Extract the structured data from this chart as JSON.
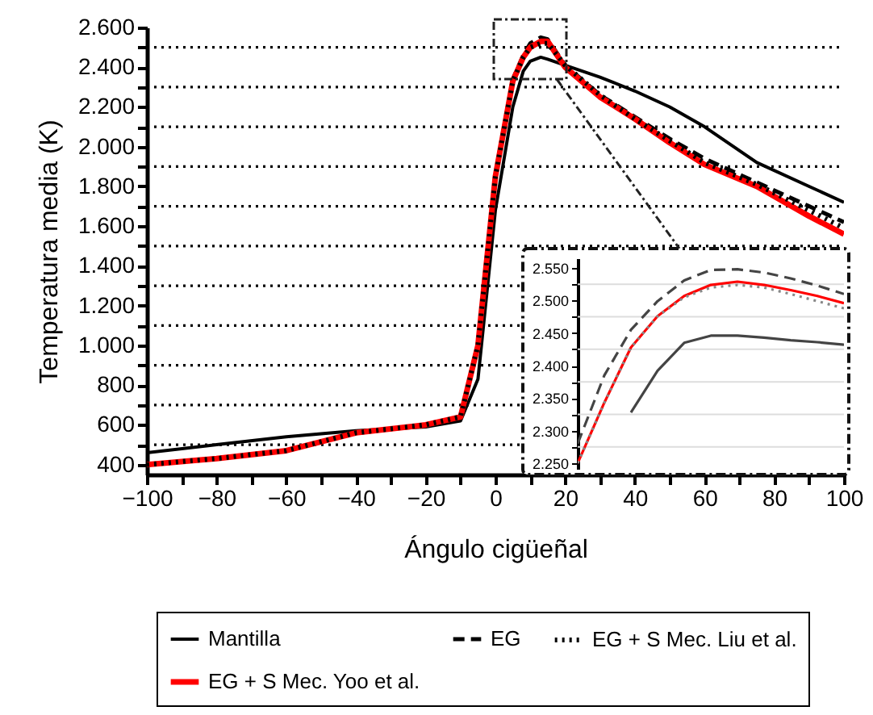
{
  "chart_data": [
    {
      "type": "line",
      "xlabel": "Ángulo cigüeñal",
      "ylabel": "Temperatura media (K)",
      "legend": "bottom",
      "grid": true,
      "x": [
        -100,
        -80,
        -60,
        -40,
        -20,
        -10,
        -5,
        0,
        5,
        8,
        10,
        13,
        15,
        20,
        30,
        40,
        50,
        60,
        75,
        90,
        100
      ],
      "xlim": [
        -100,
        100
      ],
      "ylim": [
        350,
        2600
      ],
      "xticks": [
        {
          "value": -100,
          "label": "−100"
        },
        {
          "value": -90,
          "label": null
        },
        {
          "value": -80,
          "label": "−80"
        },
        {
          "value": -70,
          "label": null
        },
        {
          "value": -60,
          "label": "−60"
        },
        {
          "value": -50,
          "label": null
        },
        {
          "value": -40,
          "label": "−40"
        },
        {
          "value": -30,
          "label": null
        },
        {
          "value": -20,
          "label": "−20"
        },
        {
          "value": -10,
          "label": null
        },
        0,
        {
          "value": 10,
          "label": null
        },
        20,
        {
          "value": 30,
          "label": null
        },
        40,
        {
          "value": 50,
          "label": null
        },
        60,
        {
          "value": 70,
          "label": null
        },
        80,
        {
          "value": 90,
          "label": null
        },
        100
      ],
      "yticks": [
        400,
        {
          "value": 500,
          "label": null
        },
        600,
        {
          "value": 700,
          "label": null
        },
        800,
        {
          "value": 900,
          "label": null
        },
        {
          "value": 1000,
          "label": "1.000"
        },
        {
          "value": 1100,
          "label": null
        },
        {
          "value": 1200,
          "label": "1.200"
        },
        {
          "value": 1300,
          "label": null
        },
        {
          "value": 1400,
          "label": "1.400"
        },
        {
          "value": 1500,
          "label": null
        },
        {
          "value": 1600,
          "label": "1.600"
        },
        {
          "value": 1700,
          "label": null
        },
        {
          "value": 1800,
          "label": "1.800"
        },
        {
          "value": 1900,
          "label": null
        },
        {
          "value": 2000,
          "label": "2.000"
        },
        {
          "value": 2100,
          "label": null
        },
        {
          "value": 2200,
          "label": "2.200"
        },
        {
          "value": 2300,
          "label": null
        },
        {
          "value": 2400,
          "label": "2.400"
        },
        {
          "value": 2500,
          "label": null
        },
        {
          "value": 2600,
          "label": "2.600"
        }
      ],
      "series": [
        {
          "name": "Mantilla",
          "color": "#000000",
          "line_style": "solid",
          "values": [
            460,
            500,
            540,
            570,
            590,
            620,
            830,
            1680,
            2200,
            2380,
            2430,
            2450,
            2440,
            2410,
            2350,
            2280,
            2200,
            2100,
            1920,
            1800,
            1720
          ]
        },
        {
          "name": "EG",
          "color": "#000000",
          "line_style": "dashed",
          "values": [
            400,
            430,
            470,
            560,
            600,
            640,
            1010,
            1860,
            2340,
            2460,
            2520,
            2550,
            2540,
            2410,
            2260,
            2150,
            2040,
            1940,
            1820,
            1700,
            1620
          ]
        },
        {
          "name": "EG + S Mec. Liu et al.",
          "color": "#000000",
          "line_style": "dotted",
          "values": [
            400,
            430,
            470,
            560,
            600,
            640,
            1000,
            1850,
            2330,
            2450,
            2500,
            2520,
            2520,
            2410,
            2260,
            2140,
            2030,
            1920,
            1810,
            1680,
            1590
          ]
        },
        {
          "name": "EG + S Mec. Yoo et al.",
          "color": "#ff0000",
          "line_style": "solid",
          "values": [
            400,
            430,
            470,
            560,
            600,
            640,
            1000,
            1850,
            2330,
            2450,
            2500,
            2530,
            2530,
            2400,
            2250,
            2140,
            2020,
            1910,
            1800,
            1650,
            1560
          ]
        }
      ]
    },
    {
      "type": "line",
      "grid": true,
      "tick_labels": "y",
      "ylim": [
        2240,
        2565
      ],
      "categories": [
        null,
        null,
        null,
        null,
        null,
        null,
        null,
        null,
        null,
        null,
        null
      ],
      "yticks": [
        {
          "value": 2250,
          "label": "2.250"
        },
        {
          "value": 2275,
          "label": null
        },
        {
          "value": 2300,
          "label": "2.300"
        },
        {
          "value": 2325,
          "label": null
        },
        {
          "value": 2350,
          "label": "2.350"
        },
        {
          "value": 2375,
          "label": null
        },
        {
          "value": 2400,
          "label": "2.400"
        },
        {
          "value": 2425,
          "label": null
        },
        {
          "value": 2450,
          "label": "2.450"
        },
        {
          "value": 2475,
          "label": null
        },
        {
          "value": 2500,
          "label": "2.500"
        },
        {
          "value": 2525,
          "label": null
        },
        {
          "value": 2550,
          "label": "2.550"
        }
      ],
      "series": [
        {
          "color": "#444444",
          "line_style": "solid",
          "values": [
            null,
            null,
            2328,
            2392,
            2435,
            2446,
            2446,
            2443,
            2439,
            2436,
            2432
          ]
        },
        {
          "color": "#444444",
          "line_style": "dashed",
          "values": [
            2280,
            2385,
            2455,
            2499,
            2531,
            2547,
            2548,
            2543,
            2534,
            2523,
            2510
          ]
        },
        {
          "color": "#888888",
          "line_style": "dotted",
          "values": [
            2250,
            2343,
            2428,
            2476,
            2505,
            2520,
            2524,
            2520,
            2510,
            2499,
            2488
          ]
        },
        {
          "color": "#ff0000",
          "line_style": "solid",
          "values": [
            2250,
            2343,
            2428,
            2476,
            2507,
            2524,
            2529,
            2524,
            2516,
            2507,
            2496
          ]
        }
      ]
    }
  ]
}
